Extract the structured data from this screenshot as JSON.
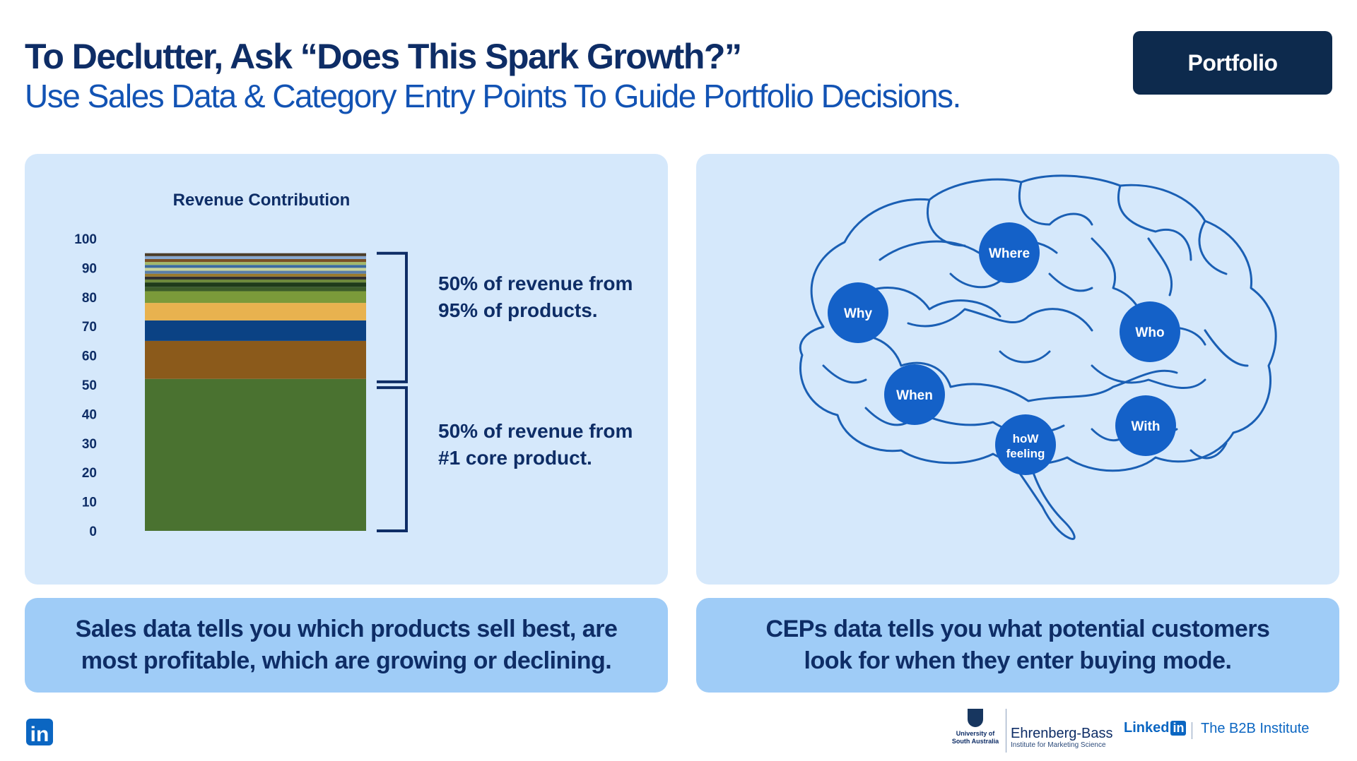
{
  "header": {
    "title": "To Declutter, Ask “Does This Spark Growth?”",
    "subtitle": "Use Sales Data & Category Entry Points To Guide Portfolio Decisions.",
    "badge": "Portfolio"
  },
  "chart_data": {
    "type": "bar",
    "title": "Revenue Contribution",
    "stacked": true,
    "ylim": [
      0,
      100
    ],
    "yticks": [
      0,
      10,
      20,
      30,
      40,
      50,
      60,
      70,
      80,
      90,
      100
    ],
    "categories": [
      ""
    ],
    "series": [
      {
        "values": [
          52
        ],
        "color": "#4a7230"
      },
      {
        "values": [
          13
        ],
        "color": "#8b5a1b"
      },
      {
        "values": [
          7
        ],
        "color": "#0b4284"
      },
      {
        "values": [
          6
        ],
        "color": "#e8b24f"
      },
      {
        "values": [
          4
        ],
        "color": "#7b9a3a"
      },
      {
        "values": [
          1.5
        ],
        "color": "#3d5d2a"
      },
      {
        "values": [
          1.5
        ],
        "color": "#1f3b1a"
      },
      {
        "values": [
          1
        ],
        "color": "#6e8a3c"
      },
      {
        "values": [
          1
        ],
        "color": "#2f2f2f"
      },
      {
        "values": [
          1
        ],
        "color": "#9a7b2c"
      },
      {
        "values": [
          1
        ],
        "color": "#5a7fa8"
      },
      {
        "values": [
          1
        ],
        "color": "#c8d39b"
      },
      {
        "values": [
          1
        ],
        "color": "#3b6aa0"
      },
      {
        "values": [
          1
        ],
        "color": "#a3b86a"
      },
      {
        "values": [
          1
        ],
        "color": "#7a4f24"
      },
      {
        "values": [
          1
        ],
        "color": "#88a8cf"
      },
      {
        "values": [
          1
        ],
        "color": "#4b3d2a"
      }
    ],
    "annotations": [
      {
        "text": "50% of revenue from 95% of products."
      },
      {
        "text": "50% of revenue from #1 core product."
      }
    ]
  },
  "left_caption": {
    "line1": "Sales data tells you which products sell best, are",
    "line2": "most profitable, which are growing or declining."
  },
  "right_caption": {
    "line1": "CEPs data tells you what potential customers",
    "line2": "look for when they enter buying mode."
  },
  "brain": {
    "nodes": [
      {
        "label": "Where"
      },
      {
        "label": "Why"
      },
      {
        "label": "Who"
      },
      {
        "label": "When"
      },
      {
        "label": "With"
      },
      {
        "label": "hoW",
        "label2": "feeling"
      }
    ],
    "node_color": "#1461c8",
    "line_color": "#1a5fb4"
  },
  "footer": {
    "linkedin_icon": "in",
    "unisa": "University of South Australia",
    "eb_name": "Ehrenberg-Bass",
    "eb_sub": "Institute for Marketing Science",
    "li_word": "Linked",
    "li_box": "in",
    "b2b": "The B2B Institute"
  }
}
